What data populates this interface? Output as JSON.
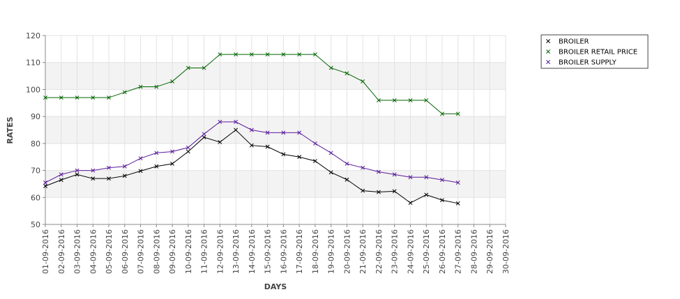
{
  "chart_data": {
    "type": "line",
    "title": "",
    "xlabel": "DAYS",
    "ylabel": "RATES",
    "ylim": [
      50,
      120
    ],
    "yticks": [
      50,
      60,
      70,
      80,
      90,
      100,
      110,
      120
    ],
    "categories": [
      "01-09-2016",
      "02-09-2016",
      "03-09-2016",
      "04-09-2016",
      "05-09-2016",
      "06-09-2016",
      "07-09-2016",
      "08-09-2016",
      "09-09-2016",
      "10-09-2016",
      "11-09-2016",
      "12-09-2016",
      "13-09-2016",
      "14-09-2016",
      "15-09-2016",
      "16-09-2016",
      "17-09-2016",
      "18-09-2016",
      "19-09-2016",
      "20-09-2016",
      "21-09-2016",
      "22-09-2016",
      "23-09-2016",
      "24-09-2016",
      "25-09-2016",
      "26-09-2016",
      "27-09-2016",
      "28-09-2016",
      "29-09-2016",
      "30-09-2016"
    ],
    "grid": true,
    "legend_position": "top-right",
    "band_color": "#f3f3f3",
    "series": [
      {
        "name": "BROILER",
        "color": "#000000",
        "values": [
          64.2,
          66.5,
          68.5,
          67,
          67,
          68,
          69.8,
          71.5,
          72.5,
          77,
          82.3,
          80.5,
          85,
          79.3,
          78.8,
          76,
          75,
          73.5,
          69.3,
          66.6,
          62.5,
          62,
          62.3,
          58,
          61,
          59,
          57.8,
          null,
          null,
          null
        ]
      },
      {
        "name": "BROILER RETAIL PRICE",
        "color": "#006400",
        "values": [
          97,
          97,
          97,
          97,
          97,
          99,
          101,
          101,
          103,
          108,
          108,
          113,
          113,
          113,
          113,
          113,
          113,
          113,
          108,
          106,
          103,
          96,
          96,
          96,
          96,
          91,
          91,
          null,
          null,
          null
        ]
      },
      {
        "name": "BROILER SUPPLY",
        "color": "#5a1a9a",
        "values": [
          65.5,
          68.5,
          70,
          70,
          71,
          71.5,
          74.5,
          76.5,
          77,
          78.5,
          83.5,
          88,
          88,
          85,
          84,
          84,
          84,
          80,
          76.5,
          72.5,
          71,
          69.5,
          68.5,
          67.5,
          67.5,
          66.5,
          65.5,
          null,
          null,
          null
        ]
      }
    ]
  }
}
